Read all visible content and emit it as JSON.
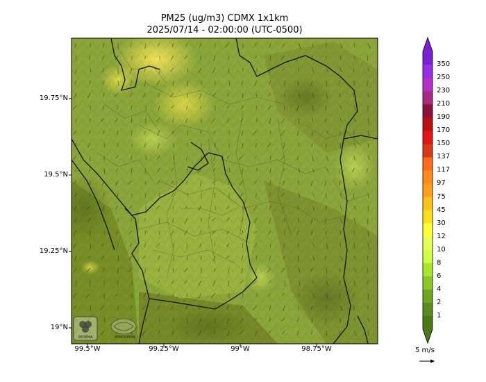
{
  "title": {
    "line1": "PM25 (ug/m3) CDMX 1x1km",
    "line2": "2025/07/14 - 02:00:00 (UTC-0500)"
  },
  "axes": {
    "lat_ticks": [
      "19.75°N",
      "19.5°N",
      "19.25°N",
      "19°N"
    ],
    "lon_ticks": [
      "99.5°W",
      "99.25°W",
      "99°W",
      "98.75°W"
    ]
  },
  "colorbar": {
    "labels": [
      "350",
      "250",
      "230",
      "210",
      "190",
      "170",
      "150",
      "137",
      "117",
      "97",
      "75",
      "45",
      "30",
      "12",
      "10",
      "8",
      "6",
      "4",
      "2",
      "1"
    ],
    "colors": [
      "#7a1fd6",
      "#9a2dea",
      "#b72fc8",
      "#a62a86",
      "#8c1240",
      "#bb1010",
      "#e21414",
      "#d43a1a",
      "#ff6a1a",
      "#ff8a1a",
      "#ffa01a",
      "#ffc21a",
      "#ffe01a",
      "#ffff33",
      "#e6ff55",
      "#ccff44",
      "#a6e82a",
      "#8cc82a",
      "#6ea620",
      "#5a8c1a",
      "#4e7a16"
    ]
  },
  "wind_reference": {
    "label": "5 m/s"
  },
  "logos": {
    "logo1_text": "SEDEMA",
    "logo2_text": "ATMOSFERA"
  }
}
